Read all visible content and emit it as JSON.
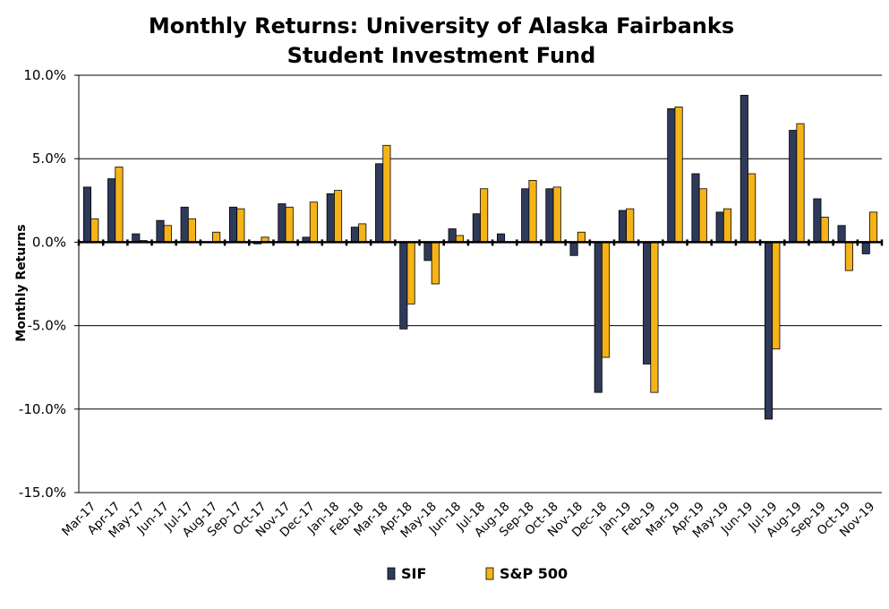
{
  "chart_data": {
    "type": "bar",
    "title": [
      "Monthly Returns: University of Alaska Fairbanks",
      "Student Investment Fund"
    ],
    "xlabel": "",
    "ylabel": "Monthly Returns",
    "ylim": [
      -15,
      10
    ],
    "yticks": [
      "10.0%",
      "5.0%",
      "0.0%",
      "-5.0%",
      "-10.0%",
      "-15.0%"
    ],
    "ytick_values": [
      10,
      5,
      0,
      -5,
      -10,
      -15
    ],
    "grid": true,
    "legend_position": "bottom",
    "categories": [
      "Mar-17",
      "Apr-17",
      "May-17",
      "Jun-17",
      "Jul-17",
      "Aug-17",
      "Sep-17",
      "Oct-17",
      "Nov-17",
      "Dec-17",
      "Jan-18",
      "Feb-18",
      "Mar-18",
      "Apr-18",
      "May-18",
      "Jun-18",
      "Jul-18",
      "Aug-18",
      "Sep-18",
      "Oct-18",
      "Nov-18",
      "Dec-18",
      "Jan-19",
      "Feb-19",
      "Mar-19",
      "Apr-19",
      "May-19",
      "Jun-19",
      "Jul-19",
      "Aug-19",
      "Sep-19",
      "Oct-19",
      "Nov-19"
    ],
    "series": [
      {
        "name": "SIF",
        "color": "#2f3a5a",
        "values": [
          3.3,
          3.8,
          0.5,
          1.3,
          2.1,
          0.0,
          2.1,
          -0.1,
          2.3,
          0.3,
          2.9,
          0.9,
          4.7,
          -5.2,
          -1.1,
          0.8,
          1.7,
          0.5,
          3.2,
          3.2,
          -0.8,
          -9.0,
          1.9,
          -7.3,
          8.0,
          4.1,
          1.8,
          8.8,
          -10.6,
          6.7,
          2.6,
          1.0,
          -0.7
        ]
      },
      {
        "name": "S&P 500",
        "color": "#f5b317",
        "values": [
          1.4,
          4.5,
          0.1,
          1.0,
          1.4,
          0.6,
          2.0,
          0.3,
          2.1,
          2.4,
          3.1,
          1.1,
          5.8,
          -3.7,
          -2.5,
          0.4,
          3.2,
          0.0,
          3.7,
          3.3,
          0.6,
          -6.9,
          2.0,
          -9.0,
          8.1,
          3.2,
          2.0,
          4.1,
          -6.4,
          7.1,
          1.5,
          -1.7,
          1.8
        ]
      }
    ]
  }
}
